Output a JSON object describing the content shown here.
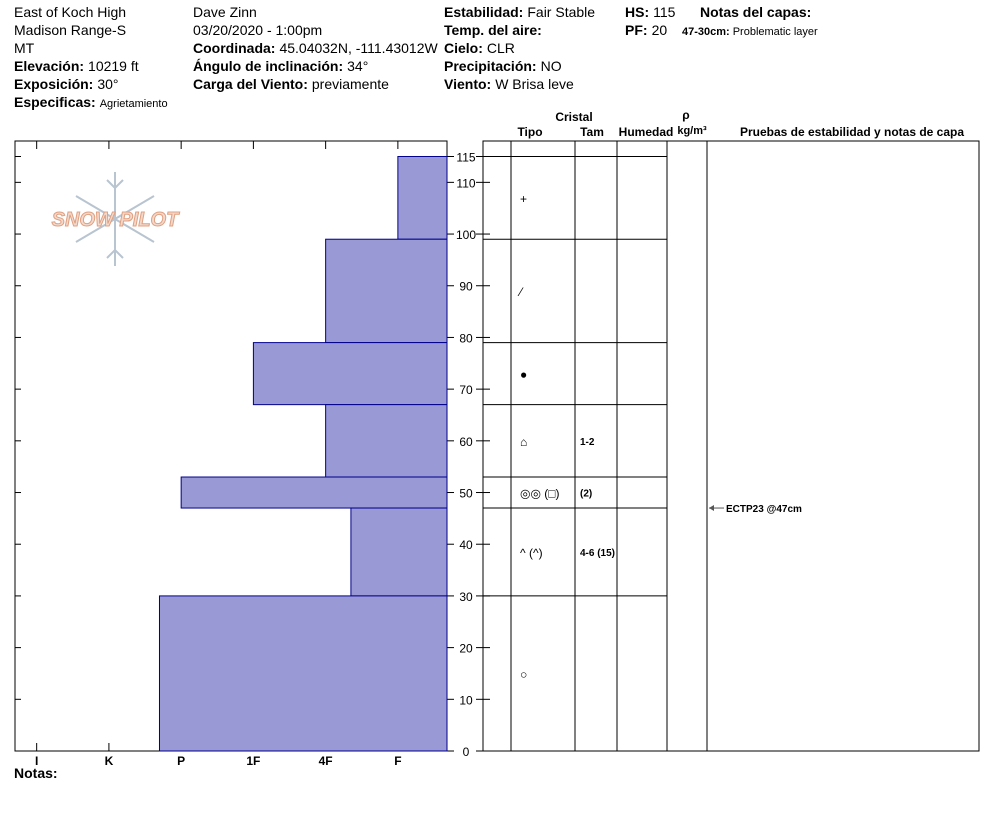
{
  "header": {
    "columns": [
      [
        {
          "text": "East of Koch High"
        },
        {
          "text": "Madison Range-S"
        },
        {
          "text": "MT"
        },
        {
          "label": "Elevación:",
          "value": "10219 ft"
        },
        {
          "label": "Exposición:",
          "value": "30°"
        },
        {
          "label": "Especificas:",
          "value": "Agrietamiento"
        }
      ],
      [
        {
          "text": "Dave Zinn"
        },
        {
          "text": "03/20/2020 - 1:00pm"
        },
        {
          "label": "Coordinada:",
          "value": "45.04032N, -111.43012W"
        },
        {
          "label": "Ángulo de inclinación:",
          "value": "34°"
        },
        {
          "label": "Carga del Viento:",
          "value": "previamente"
        }
      ],
      [
        {
          "label": "Estabilidad:",
          "value": "Fair Stable"
        },
        {
          "label": "Temp. del aire:"
        },
        {
          "label": "Cielo:",
          "value": "CLR"
        },
        {
          "label": "Precipitación:",
          "value": "NO"
        },
        {
          "label": "Viento:",
          "value": "W Brisa leve"
        }
      ],
      [
        {
          "label": "HS:",
          "value": "115"
        },
        {
          "label": "PF:",
          "value": "20"
        }
      ]
    ],
    "notes_title": "Notas del capas:",
    "notes": [
      {
        "label": "47-30cm:",
        "value": "Problematic layer"
      }
    ]
  },
  "logo": "SNOW PILOT",
  "table": {
    "crystal": "Cristal",
    "type": "Tipo",
    "size": "Tam",
    "moisture": "Humedad",
    "rho": "ρ",
    "density_unit": "kg/m³",
    "tests_title": "Pruebas de estabilidad y notas de capa"
  },
  "chart_data": {
    "type": "bar",
    "color": "#9999d6",
    "layers": [
      {
        "top": 115,
        "bottom": 99,
        "hardness": 1,
        "crystal": "+"
      },
      {
        "top": 99,
        "bottom": 79,
        "hardness": 2,
        "crystal": "⁄"
      },
      {
        "top": 79,
        "bottom": 67,
        "hardness": 3,
        "crystal": "●"
      },
      {
        "top": 67,
        "bottom": 53,
        "hardness": 2,
        "crystal": "⌂",
        "size": "1-2"
      },
      {
        "top": 53,
        "bottom": 47,
        "hardness": 4,
        "crystal": "◎◎ (□)",
        "size": "(2)"
      },
      {
        "top": 47,
        "bottom": 30,
        "hardness": 1.65,
        "crystal": "^ (^)",
        "size": "4-6 (15)"
      },
      {
        "top": 30,
        "bottom": 0,
        "hardness": 4.3,
        "crystal": "○"
      }
    ],
    "tests": [
      {
        "depth": 47,
        "label": "ECTP23 @47cm"
      }
    ],
    "xlim": [
      6.3,
      0.32
    ],
    "xticks": [
      {
        "value": 6,
        "label": "I"
      },
      {
        "value": 5,
        "label": "K"
      },
      {
        "value": 4,
        "label": "P"
      },
      {
        "value": 3,
        "label": "1F"
      },
      {
        "value": 2,
        "label": "4F"
      },
      {
        "value": 1,
        "label": "F"
      }
    ],
    "ylim": [
      0,
      118
    ],
    "yticks": [
      0,
      10,
      20,
      30,
      40,
      50,
      60,
      70,
      80,
      90,
      100,
      110,
      115
    ]
  },
  "footer": "Notas:"
}
